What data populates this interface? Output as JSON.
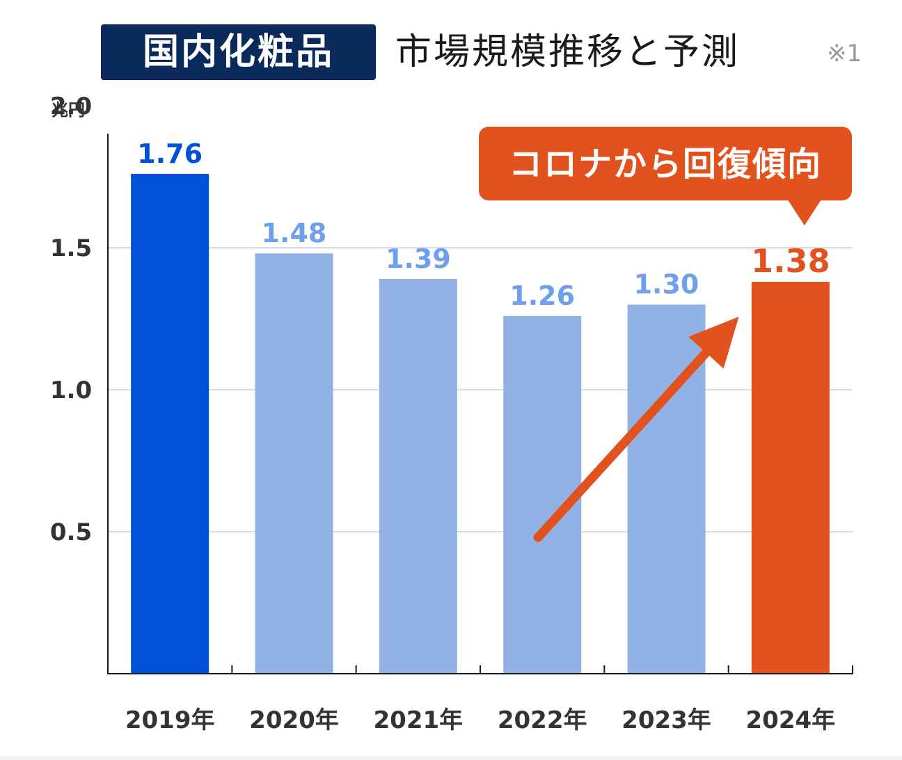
{
  "header": {
    "badge": "国内化粧品",
    "rest": "市場規模推移と予測",
    "note": "※1"
  },
  "chart_data": {
    "type": "bar",
    "ylabel": "兆円",
    "ylim": [
      0,
      2.0
    ],
    "yticks": [
      0.5,
      1.0,
      1.5,
      2.0
    ],
    "ytick_labels": [
      "0.5",
      "1.0",
      "1.5",
      "2.0"
    ],
    "grid": true,
    "categories": [
      "2019年",
      "2020年",
      "2021年",
      "2022年",
      "2023年",
      "2024年"
    ],
    "values": [
      1.76,
      1.48,
      1.39,
      1.26,
      1.3,
      1.38
    ],
    "value_labels": [
      "1.76",
      "1.48",
      "1.39",
      "1.26",
      "1.30",
      "1.38"
    ],
    "bar_colors": [
      "#0050d8",
      "#92b2e6",
      "#92b2e6",
      "#92b2e6",
      "#92b2e6",
      "#e2521f"
    ],
    "label_colors": [
      "#0050d8",
      "#6fa0ee",
      "#6fa0ee",
      "#6fa0ee",
      "#6fa0ee",
      "#e2521f"
    ],
    "annotation": {
      "text": "コロナから回復傾向",
      "color": "#e2521f"
    },
    "trend_arrow": {
      "from": {
        "category": "2022年",
        "value": 0.48
      },
      "to": {
        "category": "2023年",
        "value": 1.25
      },
      "color": "#e2521f"
    }
  }
}
